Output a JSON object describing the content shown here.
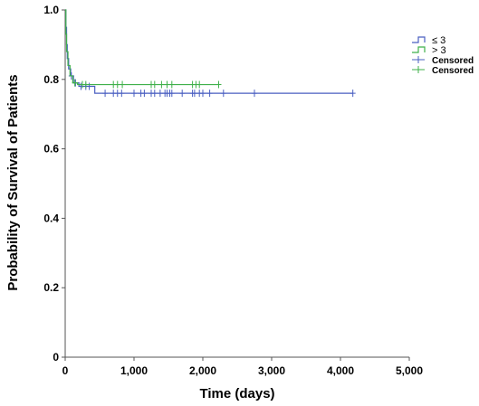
{
  "chart_data": {
    "type": "line",
    "subtype": "kaplan-meier",
    "title": "",
    "xlabel": "Time (days)",
    "ylabel": "Probability of Survival of Patients",
    "xlim": [
      0,
      5000
    ],
    "ylim": [
      0,
      1.0
    ],
    "x_ticks": [
      "0",
      "1,000",
      "2,000",
      "3,000",
      "4,000",
      "5,000"
    ],
    "y_ticks": [
      "0",
      "0.2",
      "0.4",
      "0.6",
      "0.8",
      "1.0"
    ],
    "x_tick_values": [
      0,
      1000,
      2000,
      3000,
      4000,
      5000
    ],
    "y_tick_values": [
      0,
      0.2,
      0.4,
      0.6,
      0.8,
      1.0
    ],
    "grid": false,
    "legend_position": "top-right",
    "colors": {
      "le3": "#4a5fc1",
      "gt3": "#3fb04a"
    },
    "legend": [
      {
        "label": "≤ 3",
        "kind": "step",
        "color": "#4a5fc1"
      },
      {
        "label": "> 3",
        "kind": "step",
        "color": "#3fb04a"
      },
      {
        "label": "Censored",
        "kind": "censor",
        "color": "#4a5fc1"
      },
      {
        "label": "Censored",
        "kind": "censor",
        "color": "#3fb04a"
      }
    ],
    "series": [
      {
        "name": "≤ 3",
        "color": "#4a5fc1",
        "steps": [
          [
            0,
            1.0
          ],
          [
            10,
            0.95
          ],
          [
            20,
            0.9
          ],
          [
            30,
            0.86
          ],
          [
            50,
            0.83
          ],
          [
            80,
            0.81
          ],
          [
            120,
            0.79
          ],
          [
            200,
            0.78
          ],
          [
            430,
            0.76
          ],
          [
            4180,
            0.76
          ]
        ],
        "censored": [
          [
            90,
            0.81
          ],
          [
            150,
            0.79
          ],
          [
            230,
            0.78
          ],
          [
            300,
            0.78
          ],
          [
            350,
            0.78
          ],
          [
            580,
            0.76
          ],
          [
            700,
            0.76
          ],
          [
            760,
            0.76
          ],
          [
            820,
            0.76
          ],
          [
            1000,
            0.76
          ],
          [
            1100,
            0.76
          ],
          [
            1150,
            0.76
          ],
          [
            1250,
            0.76
          ],
          [
            1300,
            0.76
          ],
          [
            1380,
            0.76
          ],
          [
            1450,
            0.76
          ],
          [
            1480,
            0.76
          ],
          [
            1520,
            0.76
          ],
          [
            1550,
            0.76
          ],
          [
            1700,
            0.76
          ],
          [
            1850,
            0.76
          ],
          [
            1880,
            0.76
          ],
          [
            1950,
            0.76
          ],
          [
            2000,
            0.76
          ],
          [
            2100,
            0.76
          ],
          [
            2300,
            0.76
          ],
          [
            2750,
            0.76
          ],
          [
            4180,
            0.76
          ]
        ]
      },
      {
        "name": "> 3",
        "color": "#3fb04a",
        "steps": [
          [
            0,
            1.0
          ],
          [
            10,
            0.93
          ],
          [
            20,
            0.88
          ],
          [
            40,
            0.84
          ],
          [
            70,
            0.81
          ],
          [
            110,
            0.79
          ],
          [
            180,
            0.785
          ],
          [
            2230,
            0.785
          ]
        ],
        "censored": [
          [
            140,
            0.79
          ],
          [
            250,
            0.785
          ],
          [
            300,
            0.785
          ],
          [
            700,
            0.785
          ],
          [
            760,
            0.785
          ],
          [
            830,
            0.785
          ],
          [
            1250,
            0.785
          ],
          [
            1300,
            0.785
          ],
          [
            1400,
            0.785
          ],
          [
            1480,
            0.785
          ],
          [
            1550,
            0.785
          ],
          [
            1850,
            0.785
          ],
          [
            1900,
            0.785
          ],
          [
            1950,
            0.785
          ],
          [
            2230,
            0.785
          ]
        ]
      }
    ]
  }
}
